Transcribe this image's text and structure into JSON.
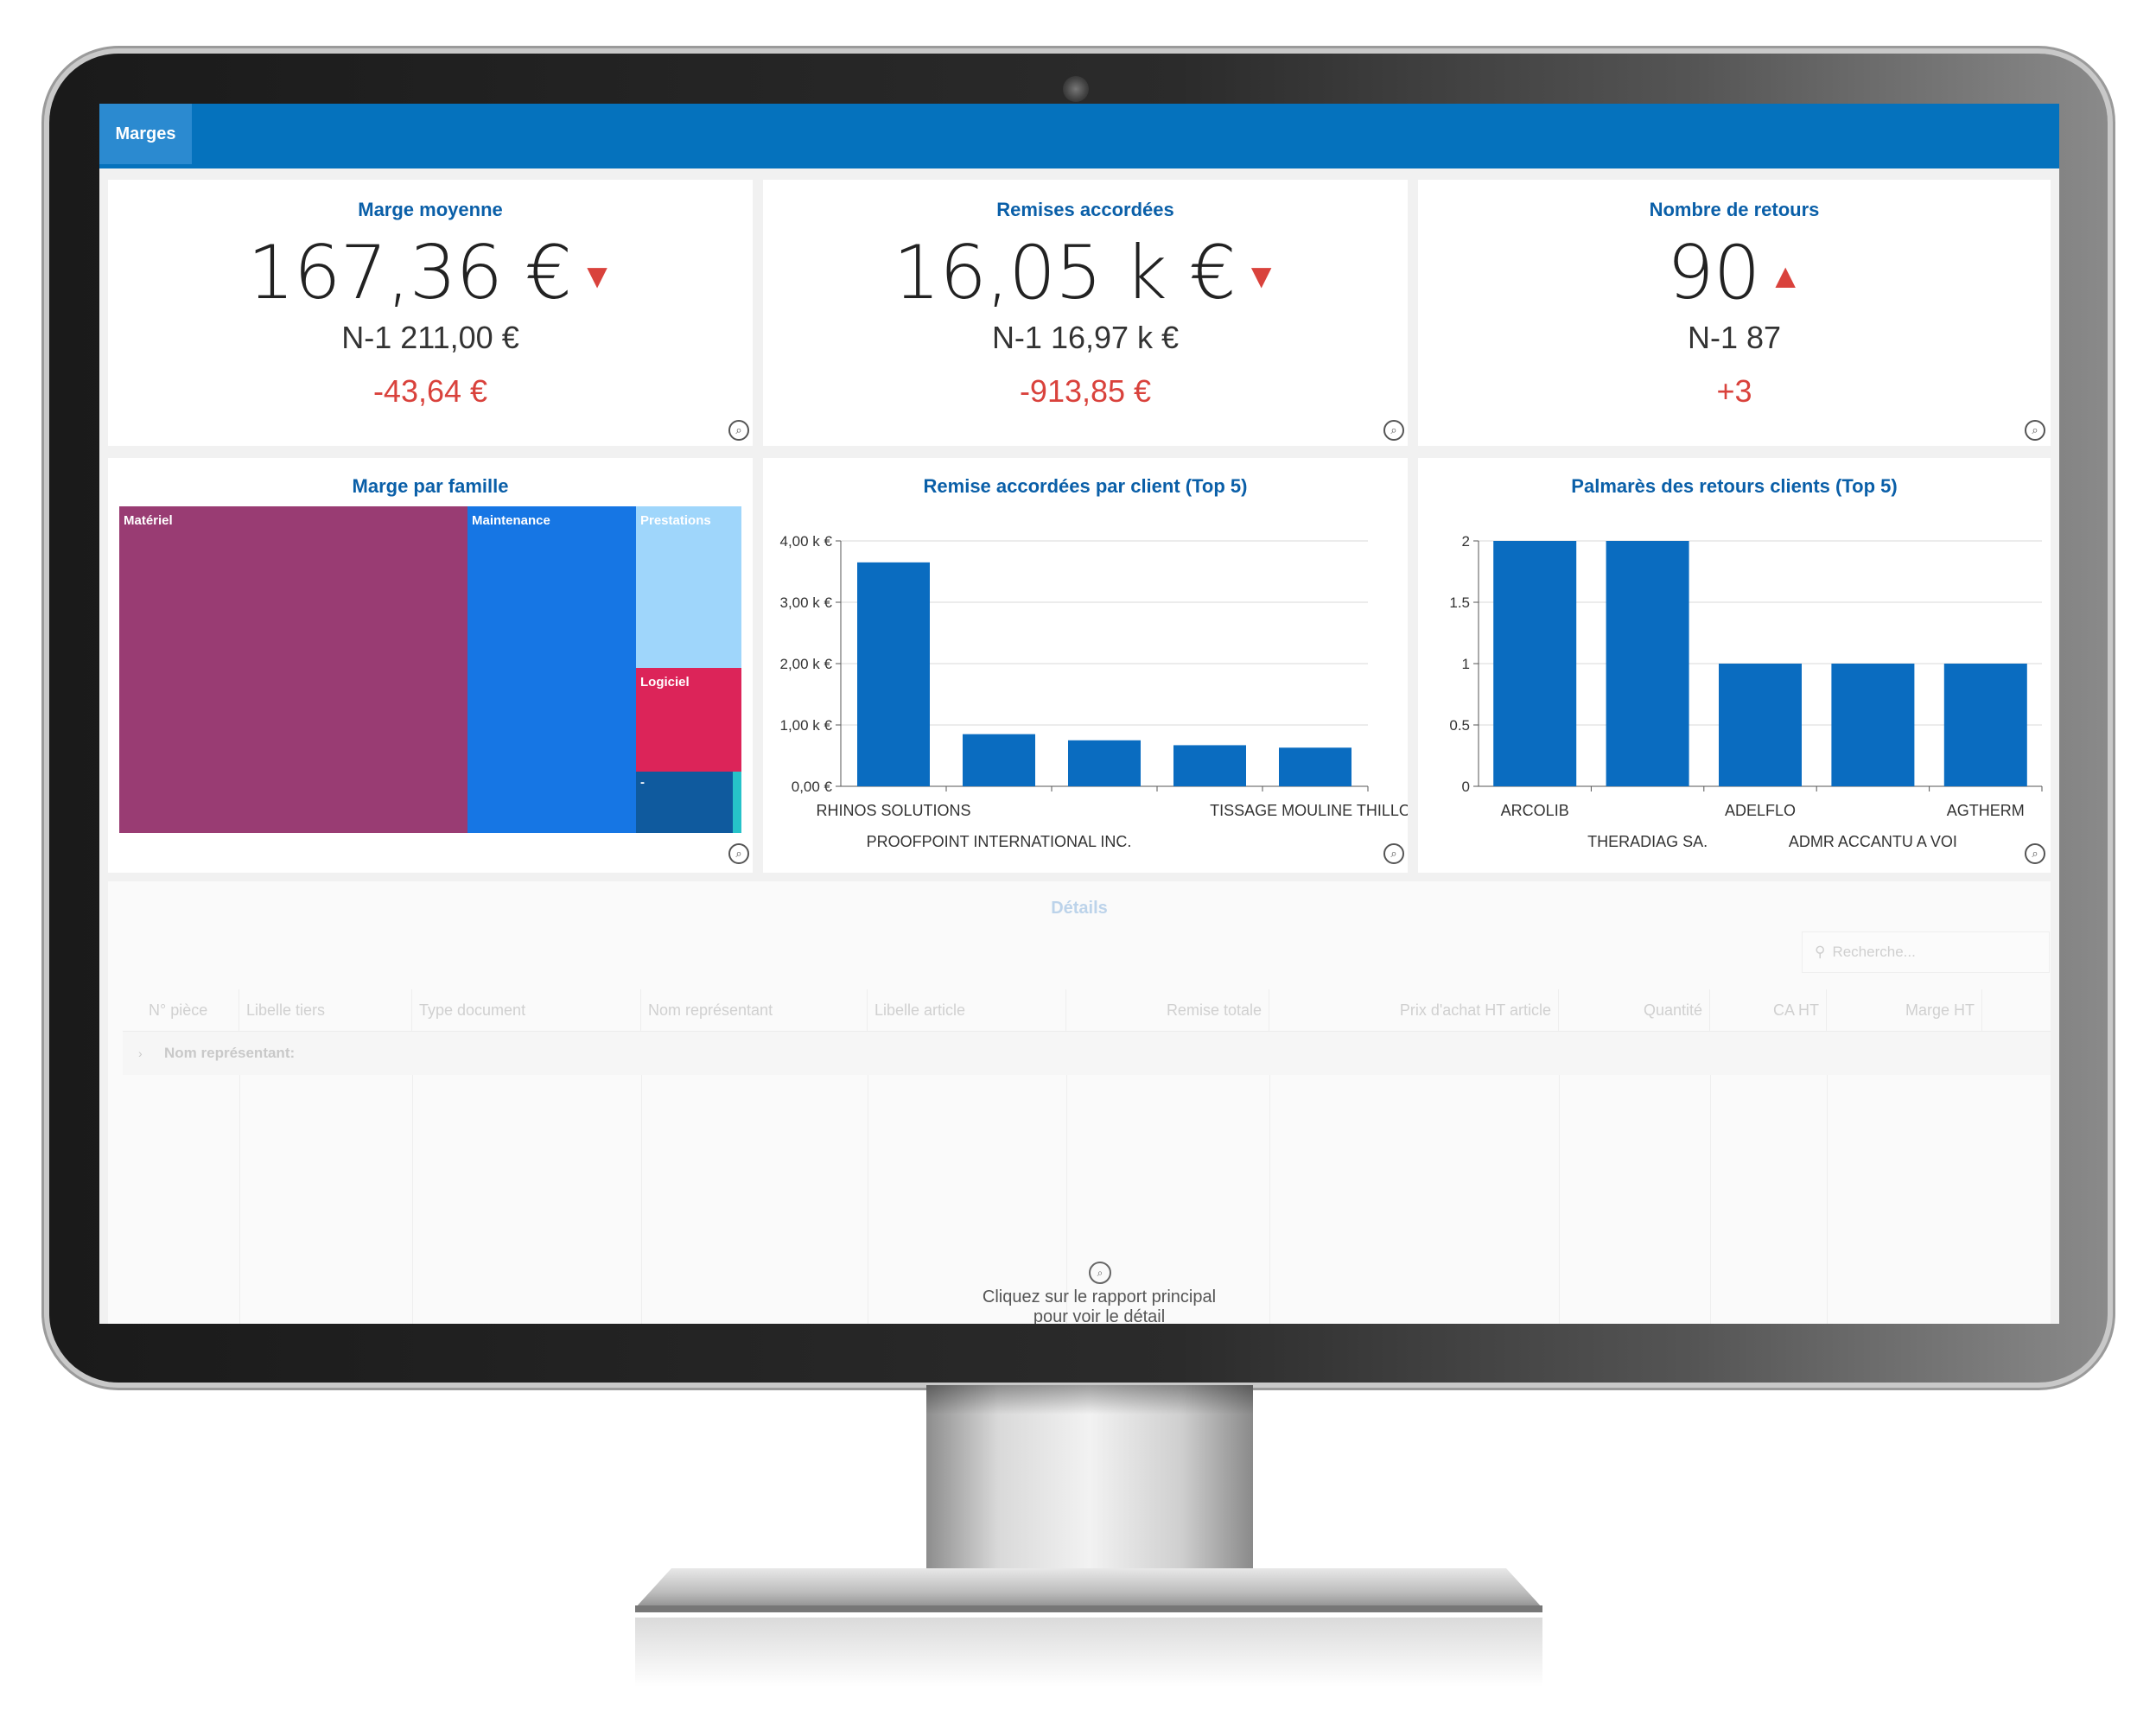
{
  "header": {
    "tab_label": "Marges"
  },
  "kpis": [
    {
      "title": "Marge moyenne",
      "value": "167,36 €",
      "trend": "down",
      "arrow": "▼",
      "previous": "N-1 211,00 €",
      "delta": "-43,64 €"
    },
    {
      "title": "Remises accordées",
      "value": "16,05 k €",
      "trend": "down",
      "arrow": "▼",
      "previous": "N-1 16,97 k €",
      "delta": "-913,85 €"
    },
    {
      "title": "Nombre de retours",
      "value": "90",
      "trend": "up",
      "arrow": "▲",
      "previous": "N-1 87",
      "delta": "+3"
    }
  ],
  "treemap": {
    "title": "Marge par famille",
    "items": [
      {
        "label": "Matériel",
        "color": "#993c73"
      },
      {
        "label": "Maintenance",
        "color": "#1676e4"
      },
      {
        "label": "Prestations",
        "color": "#9fd6fb"
      },
      {
        "label": "Logiciel",
        "color": "#dc2459"
      },
      {
        "label": "-",
        "color": "#0f5a9e"
      }
    ]
  },
  "chart_data": [
    {
      "type": "bar",
      "title": "Remise accordées par client (Top 5)",
      "categories": [
        "RHINOS SOLUTIONS",
        "PROOFPOINT INTERNATIONAL INC.",
        "",
        "",
        "TISSAGE MOULINE THILLOT"
      ],
      "values": [
        3.65,
        0.85,
        0.75,
        0.67,
        0.63
      ],
      "ylim": [
        0,
        4
      ],
      "yticks": [
        "0,00 €",
        "1,00 k €",
        "2,00 k €",
        "3,00 k €",
        "4,00 k €"
      ],
      "grid": true,
      "color": "#0a6cc0"
    },
    {
      "type": "bar",
      "title": "Palmarès des retours clients (Top 5)",
      "categories": [
        "ARCOLIB",
        "THERADIAG SA.",
        "ADELFLO",
        "ADMR ACCANTU A VOI",
        "AGTHERM"
      ],
      "values": [
        2,
        2,
        1,
        1,
        1
      ],
      "ylim": [
        0,
        2
      ],
      "yticks": [
        "0",
        "0.5",
        "1",
        "1.5",
        "2"
      ],
      "grid": true,
      "color": "#0a6cc0"
    }
  ],
  "details": {
    "title": "Détails",
    "search_placeholder": "Recherche...",
    "columns": [
      "N° pièce",
      "Libelle tiers",
      "Type document",
      "Nom représentant",
      "Libelle article",
      "Remise totale",
      "Prix d'achat HT article",
      "Quantité",
      "CA HT",
      "Marge HT"
    ],
    "group_label": "Nom représentant:",
    "empty_message_line1": "Cliquez sur le rapport principal",
    "empty_message_line2": "pour voir le détail"
  }
}
